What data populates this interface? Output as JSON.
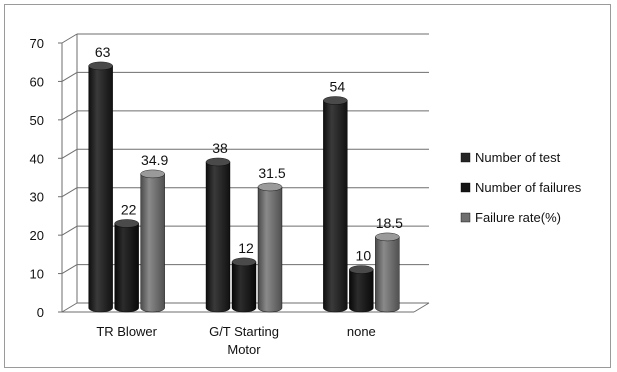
{
  "chart_data": {
    "type": "bar",
    "title": "",
    "xlabel": "",
    "ylabel": "",
    "ylim": [
      0,
      70
    ],
    "yticks": [
      0,
      10,
      20,
      30,
      40,
      50,
      60,
      70
    ],
    "grid": true,
    "legend_position": "right",
    "style": "3d-cylinder",
    "categories": [
      [
        "TR Blower"
      ],
      [
        "G/T Starting",
        "Motor"
      ],
      [
        "none"
      ]
    ],
    "series": [
      {
        "name": "Number of test",
        "values": [
          63,
          38,
          54
        ],
        "labels": [
          "63",
          "38",
          "54"
        ],
        "color": "#262626"
      },
      {
        "name": "Number of failures",
        "values": [
          22,
          12,
          10
        ],
        "labels": [
          "22",
          "12",
          "10"
        ],
        "color": "#151515"
      },
      {
        "name": "Failure rate(%)",
        "values": [
          34.9,
          31.5,
          18.5
        ],
        "labels": [
          "34.9",
          "31.5",
          "18.5"
        ],
        "color": "#6f6f6f"
      }
    ]
  }
}
